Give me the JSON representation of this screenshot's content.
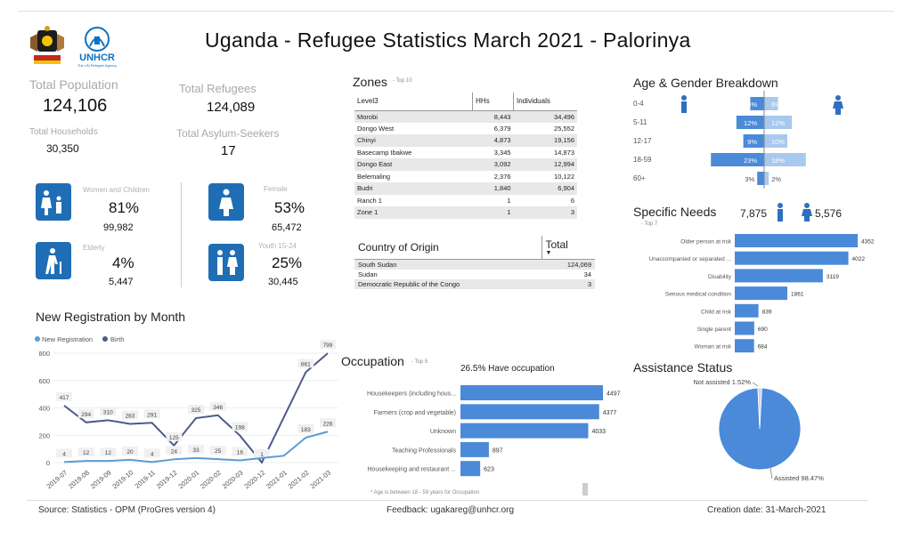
{
  "header": {
    "title": "Uganda - Refugee Statistics March 2021 - Palorinya",
    "logo_left": "uganda-coat-of-arms",
    "logo_right_text": "UNHCR",
    "logo_right_sub": "The UN Refugee Agency"
  },
  "kpis": {
    "total_population_label": "Total Population",
    "total_population": "124,106",
    "total_refugees_label": "Total Refugees",
    "total_refugees": "124,089",
    "total_households_label": "Total Households",
    "total_households": "30,350",
    "total_asylum_label": "Total Asylum-Seekers",
    "total_asylum": "17"
  },
  "demographics": {
    "women_children": {
      "label": "Women and Children",
      "pct": "81%",
      "count": "99,982",
      "icon": "women-children-icon"
    },
    "female": {
      "label": "Female",
      "pct": "53%",
      "count": "65,472",
      "icon": "female-icon"
    },
    "elderly": {
      "label": "Elderly",
      "pct": "4%",
      "count": "5,447",
      "icon": "elderly-icon"
    },
    "youth": {
      "label": "Youth 15-24",
      "pct": "25%",
      "count": "30,445",
      "icon": "youth-icon"
    }
  },
  "zones": {
    "title": "Zones",
    "subtitle": "- Top 10",
    "columns": [
      "Level3",
      "HHs",
      "Individuals"
    ],
    "rows": [
      [
        "Morobi",
        "8,443",
        "34,496"
      ],
      [
        "Dongo West",
        "6,379",
        "25,552"
      ],
      [
        "Chinyi",
        "4,873",
        "19,156"
      ],
      [
        "Basecamp Ibakwe",
        "3,345",
        "14,873"
      ],
      [
        "Dongo East",
        "3,092",
        "12,994"
      ],
      [
        "Belemaling",
        "2,376",
        "10,122"
      ],
      [
        "Budri",
        "1,840",
        "6,904"
      ],
      [
        "Ranch 1",
        "1",
        "6"
      ],
      [
        "Zone 1",
        "1",
        "3"
      ]
    ]
  },
  "country_of_origin": {
    "col1": "Country of Origin",
    "col2": "Total",
    "rows": [
      [
        "South Sudan",
        "124,069"
      ],
      [
        "Sudan",
        "34"
      ],
      [
        "Democratic Republic of the Congo",
        "3"
      ]
    ]
  },
  "age_gender": {
    "title": "Age & Gender Breakdown",
    "colors": {
      "male": "#4a8ad8",
      "female": "#a9c8ee"
    },
    "chart_data": {
      "type": "bar",
      "categories": [
        "0-4",
        "5-11",
        "12-17",
        "18-59",
        "60+"
      ],
      "series": [
        {
          "name": "Male",
          "values": [
            6,
            12,
            9,
            23,
            3
          ]
        },
        {
          "name": "Female",
          "values": [
            6,
            12,
            10,
            18,
            2
          ]
        }
      ],
      "labels_male": [
        "6%",
        "12%",
        "9%",
        "23%",
        "3%"
      ],
      "labels_female": [
        "6%",
        "12%",
        "10%",
        "18%",
        "2%"
      ]
    }
  },
  "specific_needs": {
    "title": "Specific Needs",
    "subtitle": "- Top 7",
    "male_count": "7,875",
    "female_count": "5,576",
    "color": "#4a8ad8",
    "chart_data": {
      "type": "bar",
      "categories": [
        "Older person at risk",
        "Unaccompanied or separated ...",
        "Disability",
        "Serious medical condition",
        "Child at risk",
        "Single parent",
        "Woman at risk"
      ],
      "values": [
        4352,
        4022,
        3119,
        1861,
        839,
        690,
        684
      ],
      "value_labels": [
        "4352",
        "4022",
        "3119",
        "1861",
        "839",
        "690",
        "684"
      ]
    }
  },
  "registration": {
    "title": "New Registration by Month",
    "legend": [
      "New Registration",
      "Birth"
    ],
    "colors": {
      "new_registration": "#5b9bd5",
      "birth": "#4b5a8a"
    },
    "chart_data": {
      "type": "line",
      "categories": [
        "2019-07",
        "2019-08",
        "2019-09",
        "2019-10",
        "2019-11",
        "2019-12",
        "2020-01",
        "2020-02",
        "2020-03",
        "2020-12",
        "2021-01",
        "2021-02",
        "2021-03"
      ],
      "series": [
        {
          "name": "Birth",
          "values": [
            417,
            294,
            310,
            283,
            291,
            125,
            325,
            346,
            198,
            1,
            null,
            661,
            799
          ]
        },
        {
          "name": "New Registration",
          "values": [
            4,
            12,
            12,
            20,
            4,
            24,
            33,
            25,
            16,
            null,
            50,
            183,
            226
          ]
        }
      ],
      "birth_labels": [
        "417",
        "294",
        "310",
        "283",
        "291",
        "125",
        "325",
        "346",
        "198",
        "1",
        "",
        "661",
        "799"
      ],
      "new_labels": [
        "4",
        "12",
        "12",
        "20",
        "4",
        "24",
        "33",
        "25",
        "16",
        "",
        "",
        "183",
        "226"
      ],
      "ylim": [
        0,
        800
      ],
      "yticks": [
        "0",
        "200",
        "400",
        "600",
        "800"
      ]
    }
  },
  "occupation": {
    "title": "Occupation",
    "subtitle": "- Top 5",
    "headline_pct": "26.5%",
    "headline_text": "Have occupation",
    "note": "* Age is between 18 - 59 years for Occupation",
    "color": "#4a8ad8",
    "chart_data": {
      "type": "bar",
      "categories": [
        "Housekeepers (including hous...",
        "Farmers (crop and vegetable)",
        "Unknown",
        "Teaching Professionals",
        "Housekeeping and restaurant ..."
      ],
      "values": [
        4497,
        4377,
        4033,
        897,
        623
      ],
      "value_labels": [
        "4497",
        "4377",
        "4033",
        "897",
        "623"
      ]
    }
  },
  "assistance": {
    "title": "Assistance Status",
    "colors": {
      "assisted": "#4a8ad8",
      "not_assisted": "#c9d9ef"
    },
    "chart_data": {
      "type": "pie",
      "categories": [
        "Assisted",
        "Not assisted"
      ],
      "values": [
        98.47,
        1.52
      ],
      "labels": [
        "Assisted 98.47%",
        "Not assisted 1.52%"
      ]
    }
  },
  "footer": {
    "source": "Source: Statistics - OPM (ProGres version 4)",
    "feedback": "Feedback: ugakareg@unhcr.org",
    "creation": "Creation date: 31-March-2021"
  }
}
